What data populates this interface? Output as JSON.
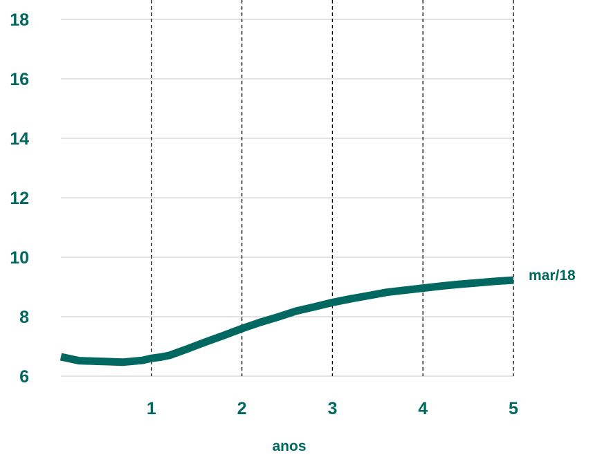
{
  "chart_data": {
    "type": "line",
    "title": "",
    "xlabel": "anos",
    "ylabel": "",
    "xlim": [
      0,
      5
    ],
    "ylim": [
      6,
      18.5
    ],
    "yticks": [
      6,
      8,
      10,
      12,
      14,
      16,
      18
    ],
    "xticks": [
      1,
      2,
      3,
      4,
      5
    ],
    "grid": "horizontal",
    "vertical_dashed_lines": [
      1,
      2,
      3,
      4,
      5
    ],
    "series": [
      {
        "name": "mar/18",
        "color": "#006860",
        "x": [
          0.0,
          0.2,
          0.4,
          0.5,
          0.68,
          0.9,
          1.0,
          1.1,
          1.2,
          1.4,
          1.6,
          1.8,
          2.0,
          2.2,
          2.4,
          2.6,
          2.8,
          3.0,
          3.2,
          3.4,
          3.6,
          3.8,
          4.0,
          4.2,
          4.4,
          4.6,
          4.8,
          5.0
        ],
        "values": [
          6.65,
          6.52,
          6.5,
          6.49,
          6.47,
          6.53,
          6.6,
          6.64,
          6.7,
          6.92,
          7.15,
          7.37,
          7.6,
          7.81,
          7.99,
          8.19,
          8.33,
          8.48,
          8.6,
          8.71,
          8.82,
          8.89,
          8.96,
          9.03,
          9.09,
          9.14,
          9.19,
          9.23
        ]
      }
    ]
  }
}
